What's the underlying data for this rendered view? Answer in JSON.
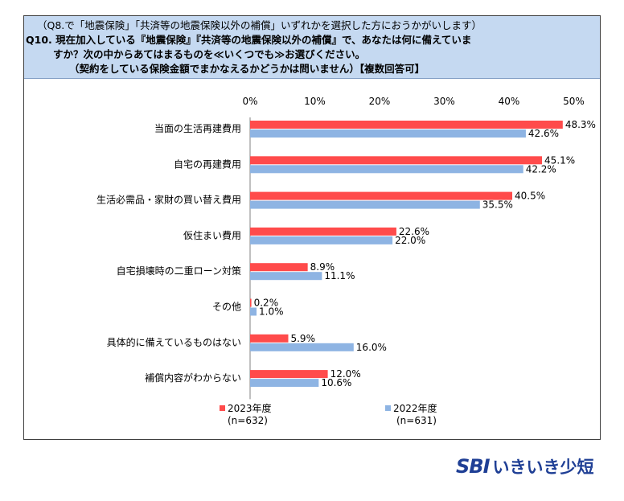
{
  "header": {
    "pre": "（Q8.で「地震保険」「共済等の地震保険以外の補償」いずれかを選択した方におうかがいします）",
    "q_line1": "Q10. 現在加入している『地震保険』『共済等の地震保険以外の補償』で、あなたは何に備えていま",
    "q_line2": "すか？次の中からあてはまるものを≪いくつでも≫お選びください。",
    "q_line3": "（契約をしている保険金額でまかなえるかどうかは問いません）【複数回答可】"
  },
  "chart_data": {
    "type": "bar",
    "orientation": "horizontal",
    "xlim": [
      0,
      50
    ],
    "ticks": [
      "0%",
      "10%",
      "20%",
      "30%",
      "40%",
      "50%"
    ],
    "tick_values": [
      0,
      10,
      20,
      30,
      40,
      50
    ],
    "categories": [
      "当面の生活再建費用",
      "自宅の再建費用",
      "生活必需品・家財の買い替え費用",
      "仮住まい費用",
      "自宅損壊時の二重ローン対策",
      "その他",
      "具体的に備えているものはない",
      "補償内容がわからない"
    ],
    "series": [
      {
        "name": "2023年度",
        "n": "(n=632)",
        "color": "#ff4b4b",
        "values": [
          48.3,
          45.1,
          40.5,
          22.6,
          8.9,
          0.2,
          5.9,
          12.0
        ],
        "labels": [
          "48.3%",
          "45.1%",
          "40.5%",
          "22.6%",
          "8.9%",
          "0.2%",
          "5.9%",
          "12.0%"
        ]
      },
      {
        "name": "2022年度",
        "n": "(n=631)",
        "color": "#8eb4e3",
        "values": [
          42.6,
          42.2,
          35.5,
          22.0,
          11.1,
          1.0,
          16.0,
          10.6
        ],
        "labels": [
          "42.6%",
          "42.2%",
          "35.5%",
          "22.0%",
          "11.1%",
          "1.0%",
          "16.0%",
          "10.6%"
        ]
      }
    ]
  },
  "logo": {
    "brand": "SBI",
    "name": "いきいき少短"
  }
}
